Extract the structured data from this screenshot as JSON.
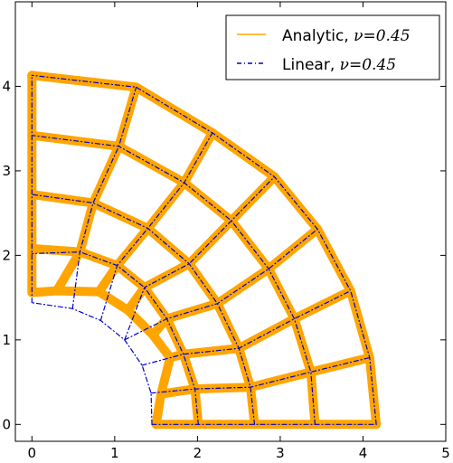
{
  "chart_data": {
    "type": "line",
    "title": "",
    "xlabel": "",
    "ylabel": "",
    "xlim": [
      -0.2,
      5
    ],
    "ylim": [
      -0.2,
      5
    ],
    "xticks": [
      0,
      1,
      2,
      3,
      4,
      5
    ],
    "yticks": [
      0,
      1,
      2,
      3,
      4
    ],
    "xtick_labels": [
      "0",
      "1",
      "2",
      "3",
      "4",
      "5"
    ],
    "ytick_labels": [
      "0",
      "1",
      "2",
      "3",
      "4"
    ],
    "grid": false,
    "legend_position": "top-right",
    "mesh": {
      "radial_lines": 7,
      "angular_lines": 5
    },
    "series": [
      {
        "name": "Analytic, ν=0.45",
        "name_italic_part": "ν=0.45",
        "name_plain_part": "Analytic, ",
        "color": "#ffa500",
        "style": "solid",
        "rings": [
          {
            "r": 1.52,
            "theta_end_deg": 90
          },
          {
            "r": 2.07,
            "theta_end_deg": 90
          },
          {
            "r": 2.7,
            "theta_end_deg": 90
          },
          {
            "r": 3.42,
            "theta_end_deg": 90
          },
          {
            "r": 4.17,
            "theta_end_deg": 90
          }
        ],
        "ring_samples": [
          [
            [
              1.5,
              0.0
            ],
            [
              1.56,
              0.36
            ],
            [
              1.67,
              0.79
            ],
            [
              1.46,
              1.06
            ],
            [
              1.16,
              1.35
            ],
            [
              0.81,
              1.57
            ],
            [
              0.3,
              1.58
            ],
            [
              0.0,
              1.56
            ]
          ],
          [
            [
              2.01,
              0.0
            ],
            [
              1.97,
              0.42
            ],
            [
              1.83,
              0.83
            ],
            [
              1.63,
              1.25
            ],
            [
              1.36,
              1.62
            ],
            [
              1.03,
              1.88
            ],
            [
              0.58,
              2.04
            ],
            [
              0.0,
              2.08
            ]
          ],
          [
            [
              2.69,
              0.0
            ],
            [
              2.64,
              0.44
            ],
            [
              2.5,
              0.9
            ],
            [
              2.24,
              1.43
            ],
            [
              1.9,
              1.9
            ],
            [
              1.4,
              2.32
            ],
            [
              0.74,
              2.62
            ],
            [
              0.0,
              2.72
            ]
          ],
          [
            [
              3.42,
              0.0
            ],
            [
              3.37,
              0.62
            ],
            [
              3.17,
              1.25
            ],
            [
              2.86,
              1.84
            ],
            [
              2.41,
              2.41
            ],
            [
              1.84,
              2.86
            ],
            [
              1.05,
              3.29
            ],
            [
              0.0,
              3.42
            ]
          ],
          [
            [
              4.16,
              0.0
            ],
            [
              4.08,
              0.79
            ],
            [
              3.85,
              1.58
            ],
            [
              3.45,
              2.31
            ],
            [
              2.93,
              2.93
            ],
            [
              2.18,
              3.45
            ],
            [
              1.26,
              3.99
            ],
            [
              0.0,
              4.13
            ]
          ]
        ]
      },
      {
        "name": "Linear, ν=0.45",
        "name_italic_part": "ν=0.45",
        "name_plain_part": "Linear, ",
        "color": "#0000cc",
        "style": "dashdot",
        "ring_samples": [
          [
            [
              1.45,
              0.0
            ],
            [
              1.44,
              0.37
            ],
            [
              1.33,
              0.7
            ],
            [
              1.12,
              1.0
            ],
            [
              0.83,
              1.23
            ],
            [
              0.49,
              1.37
            ],
            [
              0.0,
              1.44
            ]
          ],
          [
            [
              2.01,
              0.0
            ],
            [
              1.97,
              0.42
            ],
            [
              1.83,
              0.83
            ],
            [
              1.63,
              1.25
            ],
            [
              1.36,
              1.62
            ],
            [
              1.03,
              1.88
            ],
            [
              0.58,
              2.04
            ],
            [
              0.0,
              2.02
            ]
          ],
          [
            [
              2.69,
              0.0
            ],
            [
              2.64,
              0.44
            ],
            [
              2.5,
              0.9
            ],
            [
              2.24,
              1.43
            ],
            [
              1.9,
              1.9
            ],
            [
              1.4,
              2.32
            ],
            [
              0.74,
              2.62
            ],
            [
              0.0,
              2.72
            ]
          ],
          [
            [
              3.42,
              0.0
            ],
            [
              3.37,
              0.62
            ],
            [
              3.17,
              1.25
            ],
            [
              2.86,
              1.84
            ],
            [
              2.41,
              2.41
            ],
            [
              1.84,
              2.86
            ],
            [
              1.05,
              3.29
            ],
            [
              0.0,
              3.42
            ]
          ],
          [
            [
              4.16,
              0.0
            ],
            [
              4.08,
              0.79
            ],
            [
              3.85,
              1.58
            ],
            [
              3.45,
              2.31
            ],
            [
              2.93,
              2.93
            ],
            [
              2.18,
              3.45
            ],
            [
              1.26,
              3.99
            ],
            [
              0.0,
              4.13
            ]
          ]
        ]
      }
    ]
  }
}
